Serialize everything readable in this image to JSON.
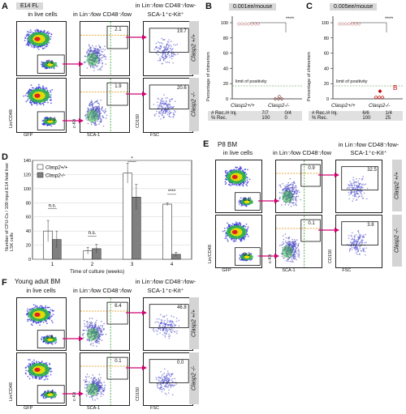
{
  "panelA": {
    "letter": "A",
    "tag": "E14 FL",
    "col1": "in live cells",
    "col2": "in Lin⁻⁄low CD48⁻⁄low",
    "col3a": "in Lin⁻⁄low CD48⁻⁄low-",
    "col3b": "SCA-1⁺c-Kit⁺",
    "row1": "Clasp2 +/+",
    "row2": "Clasp2 -/-",
    "v_r1c1": "7.9",
    "v_r1c2": "2.1",
    "v_r1c3": "19.7",
    "v_r2c1": "12.6",
    "v_r2c2": "1.9",
    "v_r2c3": "20.6",
    "x1": "GFP",
    "x2": "SCA-1",
    "x3": "FSC",
    "y1": "Lin/CD48",
    "y2": "c-Kit",
    "y3": "CD150"
  },
  "panelB": {
    "letter": "B",
    "box": "0.001ee/mouse",
    "sig": "****",
    "ylabel": "Percentage of chimerism",
    "limit": "limit of positivity",
    "x1": "Clasp2+/+",
    "x2": "Clasp2-/-",
    "r1": "# Rec./# Inj.",
    "r1a": "7/7",
    "r1b": "0/4",
    "r2": "% Rec.",
    "r2a": "100",
    "r2b": "0",
    "yticks": [
      "0",
      "20",
      "40",
      "60",
      "80",
      "100"
    ]
  },
  "panelC": {
    "letter": "C",
    "box": "0.005ee/mouse",
    "sig": "****",
    "ylabel": "Percentage of chimerism",
    "limit": "limit of positivity",
    "mark": "B",
    "x1": "Clasp2+/+",
    "x2": "Clasp2-/-",
    "r1": "# Rec./# Inj.",
    "r1a": "6/6",
    "r1b": "1/4",
    "r2": "% Rec.",
    "r2a": "100",
    "r2b": "25",
    "yticks": [
      "0",
      "20",
      "40",
      "60",
      "80",
      "100"
    ]
  },
  "panelD": {
    "letter": "D",
    "ylabel": "Number of CFU-Cs / 100 input E14 fetal liver LSK cells",
    "xlabel": "Time of culture (weeks)",
    "legend": [
      "Clasp2+/+",
      "Clasp2-/-"
    ],
    "ns1": "n.s.",
    "ns2": "n.s.",
    "sig3": "*",
    "sig4": "****"
  },
  "panelE": {
    "letter": "E",
    "tag": "P8 BM",
    "col1": "in live cells",
    "col2": "in Lin⁻⁄low CD48⁻⁄low",
    "col3a": "in Lin⁻⁄low CD48⁻⁄low-",
    "col3b": "SCA-1⁺c-Kit⁺",
    "row1": "Clasp2 +/+",
    "row2": "Clasp2 -/-",
    "v_r1c1": "8.1",
    "v_r1c2": "0.9",
    "v_r1c3": "32.5",
    "v_r2c1": "9.3",
    "v_r2c2": "0.1",
    "v_r2c3": "3.8",
    "x1": "GFP",
    "x2": "SCA-1",
    "x3": "FSC",
    "y1": "Lin/CD48",
    "y2": "c-Kit",
    "y3": "CD150"
  },
  "panelF": {
    "letter": "F",
    "tag": "Young adult BM",
    "col1": "in live cells",
    "col2": "in Lin⁻⁄low CD48⁻⁄low",
    "col3a": "in Lin⁻⁄low CD48⁻⁄low-",
    "col3b": "SCA-1⁺c-Kit⁺",
    "row1": "Clasp2 +/+",
    "row2": "Clasp2 -/-",
    "v_r1c1": "1.8",
    "v_r1c2": "6.4",
    "v_r1c3": "46.8",
    "v_r2c1": "1.4",
    "v_r2c2": "0.1",
    "v_r2c3": "0.0",
    "x1": "GFP",
    "x2": "SCA-1",
    "x3": "FSC",
    "y1": "Lin/CD48",
    "y2": "c-Kit",
    "y3": "CD150"
  },
  "chart_data": [
    {
      "type": "bar",
      "categories": [
        "1",
        "2",
        "3",
        "4"
      ],
      "series": [
        {
          "name": "Clasp2+/+",
          "values": [
            40,
            12,
            122,
            78
          ],
          "errors": [
            15,
            5,
            14,
            2
          ]
        },
        {
          "name": "Clasp2-/-",
          "values": [
            28,
            15,
            88,
            7
          ],
          "errors": [
            12,
            6,
            18,
            3
          ]
        }
      ],
      "xlabel": "Time of culture (weeks)",
      "ylabel": "Number of CFU-Cs / 100 input E14 fetal liver LSK cells",
      "ylim": [
        0,
        140
      ],
      "yticks": [
        0,
        20,
        40,
        60,
        80,
        100,
        120,
        140
      ],
      "legend": "top-left"
    }
  ],
  "colors": {
    "wt": "#ffffff",
    "ko": "#808080",
    "gate_green": "#2e9d2e",
    "gate_orange": "#e08a00",
    "arrow": "#d0006f",
    "wt_marker": "#b05050",
    "ko_marker": "#c00000",
    "limit": "#3a8f3a"
  }
}
